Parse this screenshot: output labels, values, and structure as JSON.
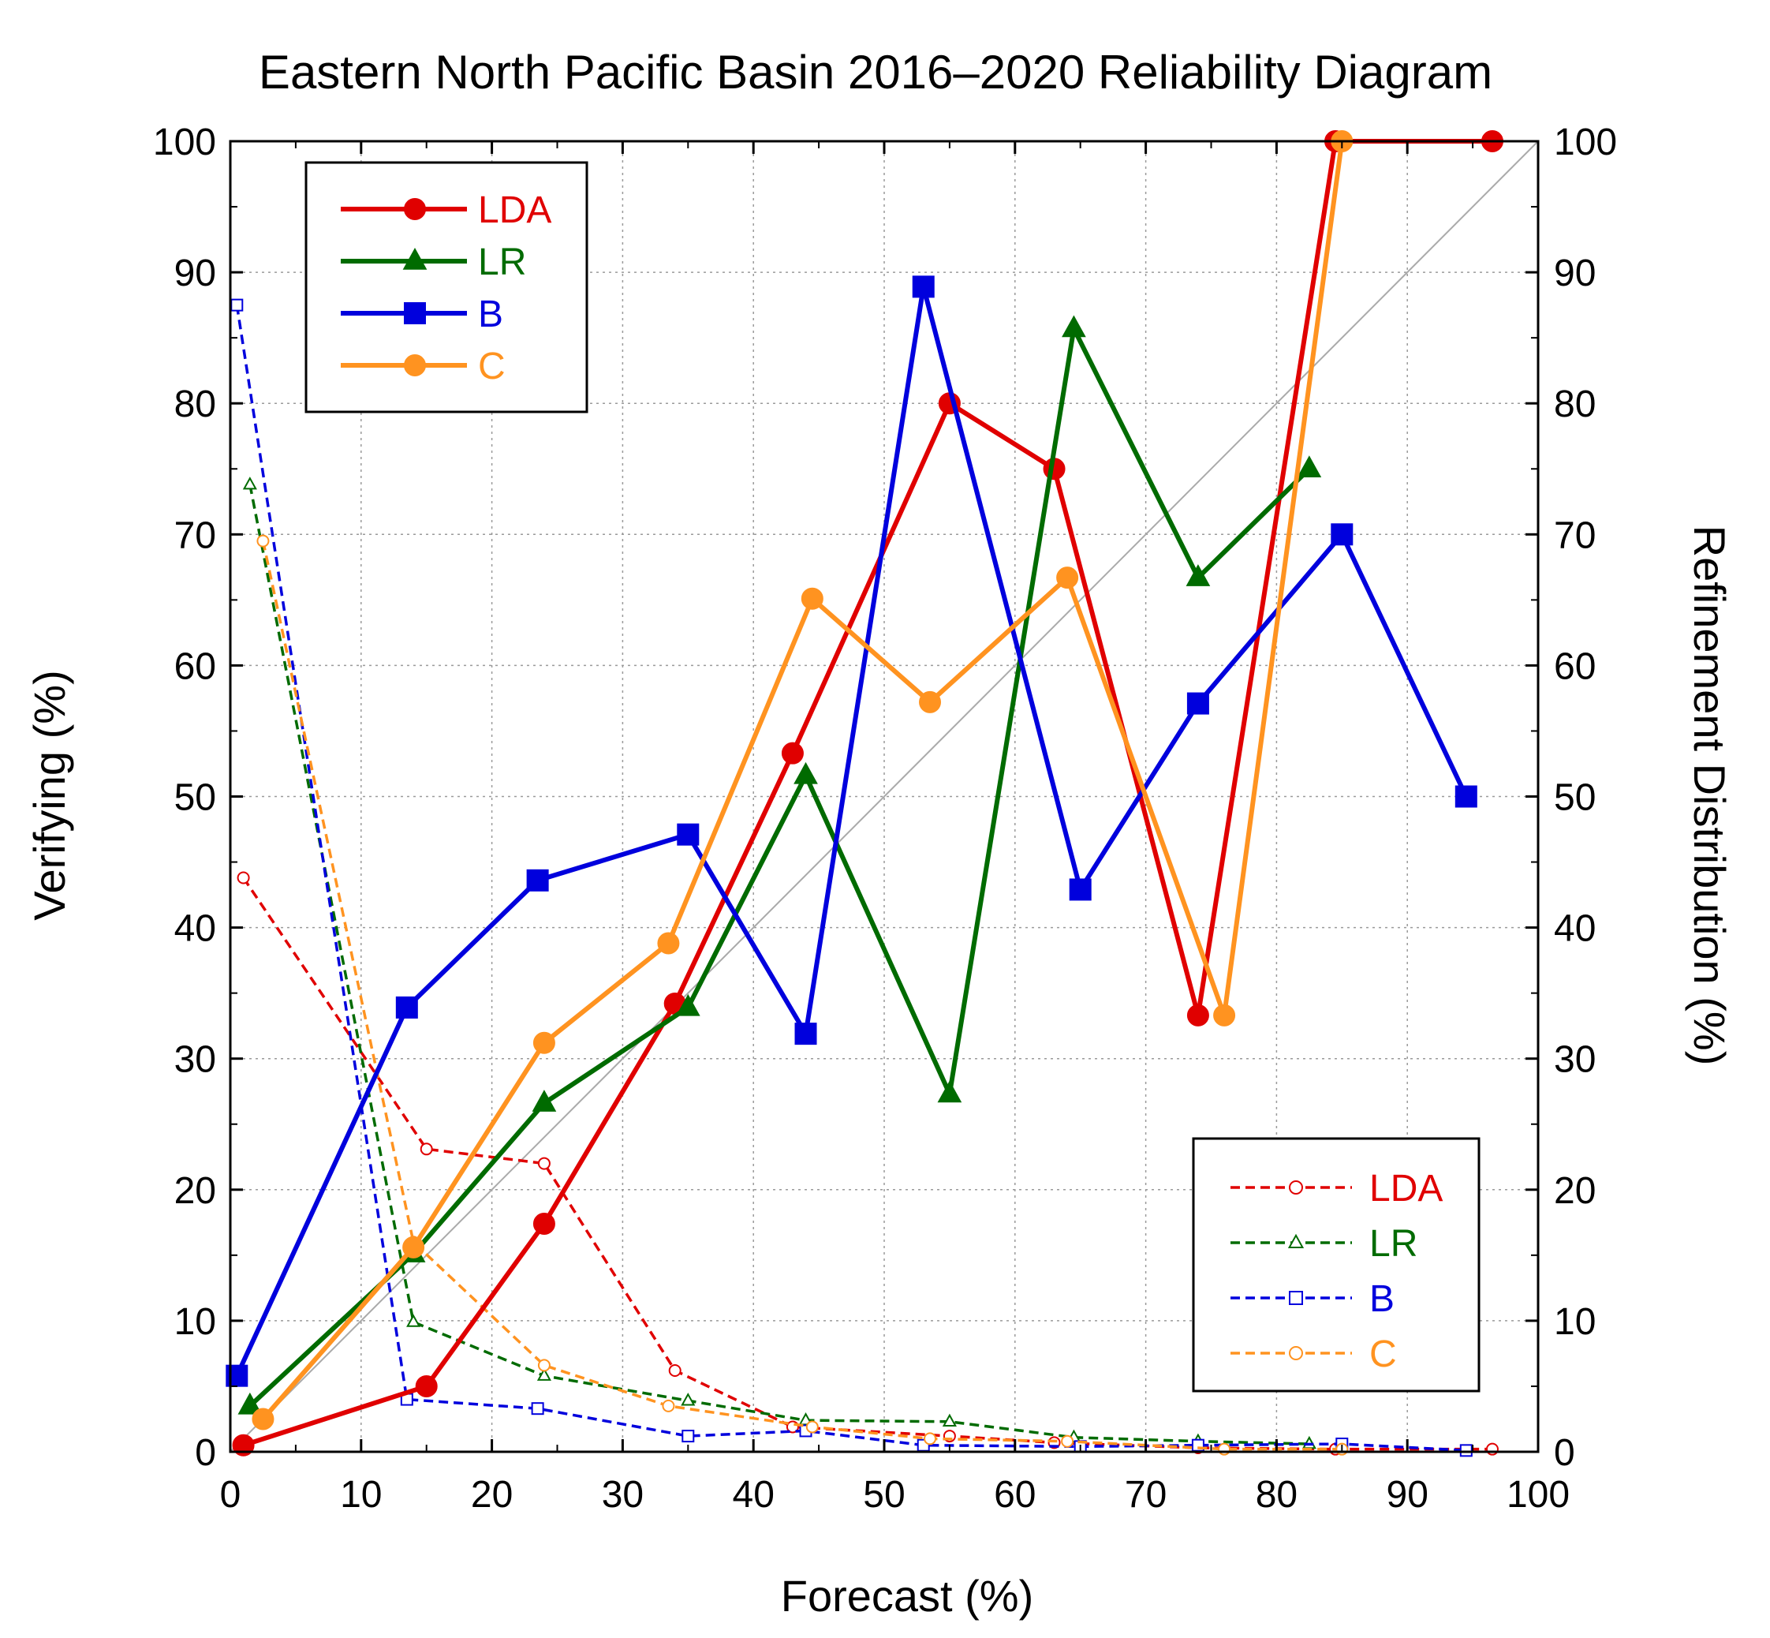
{
  "chart_data": {
    "type": "line",
    "title": "Eastern North Pacific Basin 2016–2020 Reliability Diagram",
    "xlabel": "Forecast (%)",
    "ylabel": "Verifying (%)",
    "y2label": "Refinement Distribution (%)",
    "xlim": [
      0,
      100
    ],
    "ylim": [
      0,
      100
    ],
    "y2lim": [
      0,
      100
    ],
    "x_ticks": [
      "0",
      "10",
      "20",
      "30",
      "40",
      "50",
      "60",
      "70",
      "80",
      "90",
      "100"
    ],
    "y_ticks": [
      "0",
      "10",
      "20",
      "30",
      "40",
      "50",
      "60",
      "70",
      "80",
      "90",
      "100"
    ],
    "y2_ticks": [
      "0",
      "10",
      "20",
      "30",
      "40",
      "50",
      "60",
      "70",
      "80",
      "90",
      "100"
    ],
    "grid": true,
    "diagonal_reference": true,
    "legend_top_left": "top-left",
    "legend_bottom_right": "bottom-right",
    "series": [
      {
        "name": "LDA",
        "group": "reliability",
        "axis": "left",
        "color": "#e00000",
        "marker": "circle",
        "filled": true,
        "dashed": false,
        "x": [
          1,
          15,
          24,
          34,
          43,
          55,
          63,
          74,
          84.5,
          96.5
        ],
        "y": [
          0.5,
          5,
          17.4,
          34.2,
          53.3,
          80,
          75,
          33.3,
          100,
          100
        ]
      },
      {
        "name": "LR",
        "group": "reliability",
        "axis": "left",
        "color": "#006b00",
        "marker": "triangle",
        "filled": true,
        "dashed": false,
        "x": [
          1.5,
          14,
          24,
          35,
          44,
          55,
          64.5,
          74,
          82.5
        ],
        "y": [
          3.5,
          15.1,
          26.6,
          33.9,
          51.6,
          27.3,
          85.7,
          66.7,
          75
        ]
      },
      {
        "name": "B",
        "group": "reliability",
        "axis": "left",
        "color": "#0000dd",
        "marker": "square",
        "filled": true,
        "dashed": false,
        "x": [
          0.5,
          13.5,
          23.5,
          35,
          44,
          53,
          65,
          74,
          85,
          94.5
        ],
        "y": [
          5.8,
          33.9,
          43.6,
          47.1,
          31.9,
          88.9,
          42.9,
          57.1,
          70,
          50
        ]
      },
      {
        "name": "C",
        "group": "reliability",
        "axis": "left",
        "color": "#ff9320",
        "marker": "circle",
        "filled": true,
        "dashed": false,
        "x": [
          2.5,
          14,
          24,
          33.5,
          44.5,
          53.5,
          64,
          76,
          85
        ],
        "y": [
          2.5,
          15.6,
          31.2,
          38.8,
          65.1,
          57.2,
          66.7,
          33.3,
          100
        ]
      },
      {
        "name": "LDA",
        "group": "refinement",
        "axis": "right",
        "color": "#e00000",
        "marker": "circle",
        "filled": false,
        "dashed": true,
        "x": [
          1,
          15,
          24,
          34,
          43,
          55,
          63,
          74,
          84.5,
          96.5
        ],
        "y": [
          43.8,
          23.1,
          22,
          6.2,
          1.9,
          1.2,
          0.7,
          0.3,
          0.2,
          0.2
        ]
      },
      {
        "name": "LR",
        "group": "refinement",
        "axis": "right",
        "color": "#006b00",
        "marker": "triangle",
        "filled": false,
        "dashed": true,
        "x": [
          1.5,
          14,
          24,
          35,
          44,
          55,
          64.5,
          74,
          82.5
        ],
        "y": [
          73.8,
          9.9,
          5.8,
          3.9,
          2.4,
          2.3,
          1.1,
          0.8,
          0.6
        ]
      },
      {
        "name": "B",
        "group": "refinement",
        "axis": "right",
        "color": "#0000dd",
        "marker": "square",
        "filled": false,
        "dashed": true,
        "x": [
          0.5,
          13.5,
          23.5,
          35,
          44,
          53,
          65,
          74,
          85,
          94.5
        ],
        "y": [
          87.5,
          4,
          3.3,
          1.2,
          1.6,
          0.5,
          0.4,
          0.5,
          0.6,
          0.1
        ]
      },
      {
        "name": "C",
        "group": "refinement",
        "axis": "right",
        "color": "#ff9320",
        "marker": "circle",
        "filled": false,
        "dashed": true,
        "x": [
          2.5,
          14,
          24,
          33.5,
          44.5,
          53.5,
          64,
          76,
          85
        ],
        "y": [
          69.5,
          16,
          6.6,
          3.5,
          1.9,
          1,
          0.8,
          0.2,
          0.2
        ]
      }
    ]
  }
}
